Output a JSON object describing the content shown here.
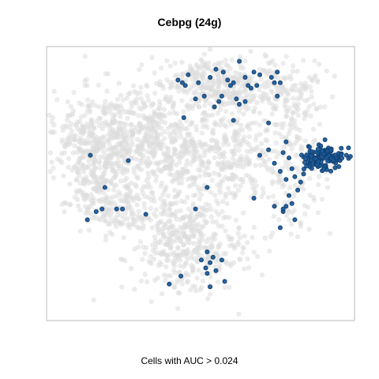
{
  "chart_data": {
    "type": "scatter",
    "title": "Cebpg (24g)",
    "xlabel": "Cells with AUC > 0.024",
    "ylabel": "",
    "axes_shown": false,
    "grid": false,
    "frame": true,
    "colors": {
      "background_cells": "#dcdcdc",
      "highlighted_cells": "#1f5a96",
      "highlighted_edge": "#0d3e70",
      "frame": "#bbbbbb"
    },
    "series": [
      {
        "role": "background",
        "clusters": [
          {
            "cx": 0.215,
            "cy": 0.31,
            "sx": 0.11,
            "sy": 0.085,
            "n": 420
          },
          {
            "cx": 0.15,
            "cy": 0.47,
            "sx": 0.075,
            "sy": 0.09,
            "n": 230
          },
          {
            "cx": 0.34,
            "cy": 0.34,
            "sx": 0.05,
            "sy": 0.11,
            "n": 150
          },
          {
            "cx": 0.46,
            "cy": 0.37,
            "sx": 0.04,
            "sy": 0.1,
            "n": 130
          },
          {
            "cx": 0.6,
            "cy": 0.38,
            "sx": 0.07,
            "sy": 0.1,
            "n": 240
          },
          {
            "cx": 0.63,
            "cy": 0.12,
            "sx": 0.11,
            "sy": 0.06,
            "n": 220
          },
          {
            "cx": 0.5,
            "cy": 0.13,
            "sx": 0.08,
            "sy": 0.05,
            "n": 140
          },
          {
            "cx": 0.8,
            "cy": 0.44,
            "sx": 0.07,
            "sy": 0.12,
            "n": 160
          },
          {
            "cx": 0.82,
            "cy": 0.19,
            "sx": 0.06,
            "sy": 0.08,
            "n": 90
          },
          {
            "cx": 0.47,
            "cy": 0.75,
            "sx": 0.1,
            "sy": 0.085,
            "n": 300
          },
          {
            "cx": 0.39,
            "cy": 0.64,
            "sx": 0.06,
            "sy": 0.07,
            "n": 130
          },
          {
            "cx": 0.21,
            "cy": 0.6,
            "sx": 0.055,
            "sy": 0.05,
            "n": 90
          },
          {
            "cx": 0.09,
            "cy": 0.34,
            "sx": 0.03,
            "sy": 0.06,
            "n": 45
          }
        ]
      },
      {
        "role": "highlighted",
        "dense_cluster": {
          "cx": 0.92,
          "cy": 0.4,
          "sx": 0.035,
          "sy": 0.022,
          "n": 130
        },
        "points": [
          [
            0.42,
            0.11
          ],
          [
            0.435,
            0.12
          ],
          [
            0.445,
            0.13
          ],
          [
            0.49,
            0.12
          ],
          [
            0.455,
            0.09
          ],
          [
            0.51,
            0.17
          ],
          [
            0.53,
            0.1
          ],
          [
            0.545,
            0.21
          ],
          [
            0.56,
            0.19
          ],
          [
            0.575,
            0.08
          ],
          [
            0.59,
            0.11
          ],
          [
            0.6,
            0.13
          ],
          [
            0.61,
            0.12
          ],
          [
            0.62,
            0.18
          ],
          [
            0.63,
            0.2
          ],
          [
            0.65,
            0.19
          ],
          [
            0.65,
            0.1
          ],
          [
            0.66,
            0.13
          ],
          [
            0.67,
            0.14
          ],
          [
            0.68,
            0.08
          ],
          [
            0.69,
            0.13
          ],
          [
            0.7,
            0.09
          ],
          [
            0.73,
            0.27
          ],
          [
            0.74,
            0.1
          ],
          [
            0.75,
            0.12
          ],
          [
            0.76,
            0.17
          ],
          [
            0.76,
            0.08
          ],
          [
            0.77,
            0.12
          ],
          [
            0.63,
            0.04
          ],
          [
            0.55,
            0.07
          ],
          [
            0.44,
            0.25
          ],
          [
            0.61,
            0.26
          ],
          [
            0.57,
            0.17
          ],
          [
            0.48,
            0.18
          ],
          [
            0.7,
            0.39
          ],
          [
            0.73,
            0.37
          ],
          [
            0.75,
            0.42
          ],
          [
            0.77,
            0.45
          ],
          [
            0.78,
            0.38
          ],
          [
            0.8,
            0.4
          ],
          [
            0.81,
            0.44
          ],
          [
            0.82,
            0.47
          ],
          [
            0.83,
            0.52
          ],
          [
            0.84,
            0.49
          ],
          [
            0.85,
            0.46
          ],
          [
            0.86,
            0.43
          ],
          [
            0.79,
            0.48
          ],
          [
            0.8,
            0.54
          ],
          [
            0.87,
            0.36
          ],
          [
            0.79,
            0.34
          ],
          [
            0.75,
            0.58
          ],
          [
            0.78,
            0.6
          ],
          [
            0.79,
            0.58
          ],
          [
            0.81,
            0.57
          ],
          [
            0.82,
            0.63
          ],
          [
            0.77,
            0.66
          ],
          [
            0.78,
            0.59
          ],
          [
            0.12,
            0.39
          ],
          [
            0.25,
            0.41
          ],
          [
            0.16,
            0.59
          ],
          [
            0.14,
            0.6
          ],
          [
            0.11,
            0.63
          ],
          [
            0.21,
            0.59
          ],
          [
            0.23,
            0.59
          ],
          [
            0.31,
            0.61
          ],
          [
            0.48,
            0.59
          ],
          [
            0.52,
            0.51
          ],
          [
            0.17,
            0.51
          ],
          [
            0.68,
            0.55
          ],
          [
            0.5,
            0.78
          ],
          [
            0.515,
            0.81
          ],
          [
            0.53,
            0.79
          ],
          [
            0.54,
            0.77
          ],
          [
            0.55,
            0.82
          ],
          [
            0.57,
            0.78
          ],
          [
            0.58,
            0.86
          ],
          [
            0.52,
            0.83
          ],
          [
            0.43,
            0.84
          ],
          [
            0.39,
            0.87
          ],
          [
            0.53,
            0.88
          ],
          [
            0.52,
            0.75
          ]
        ]
      }
    ]
  },
  "caption": "Cells with AUC > 0.024"
}
